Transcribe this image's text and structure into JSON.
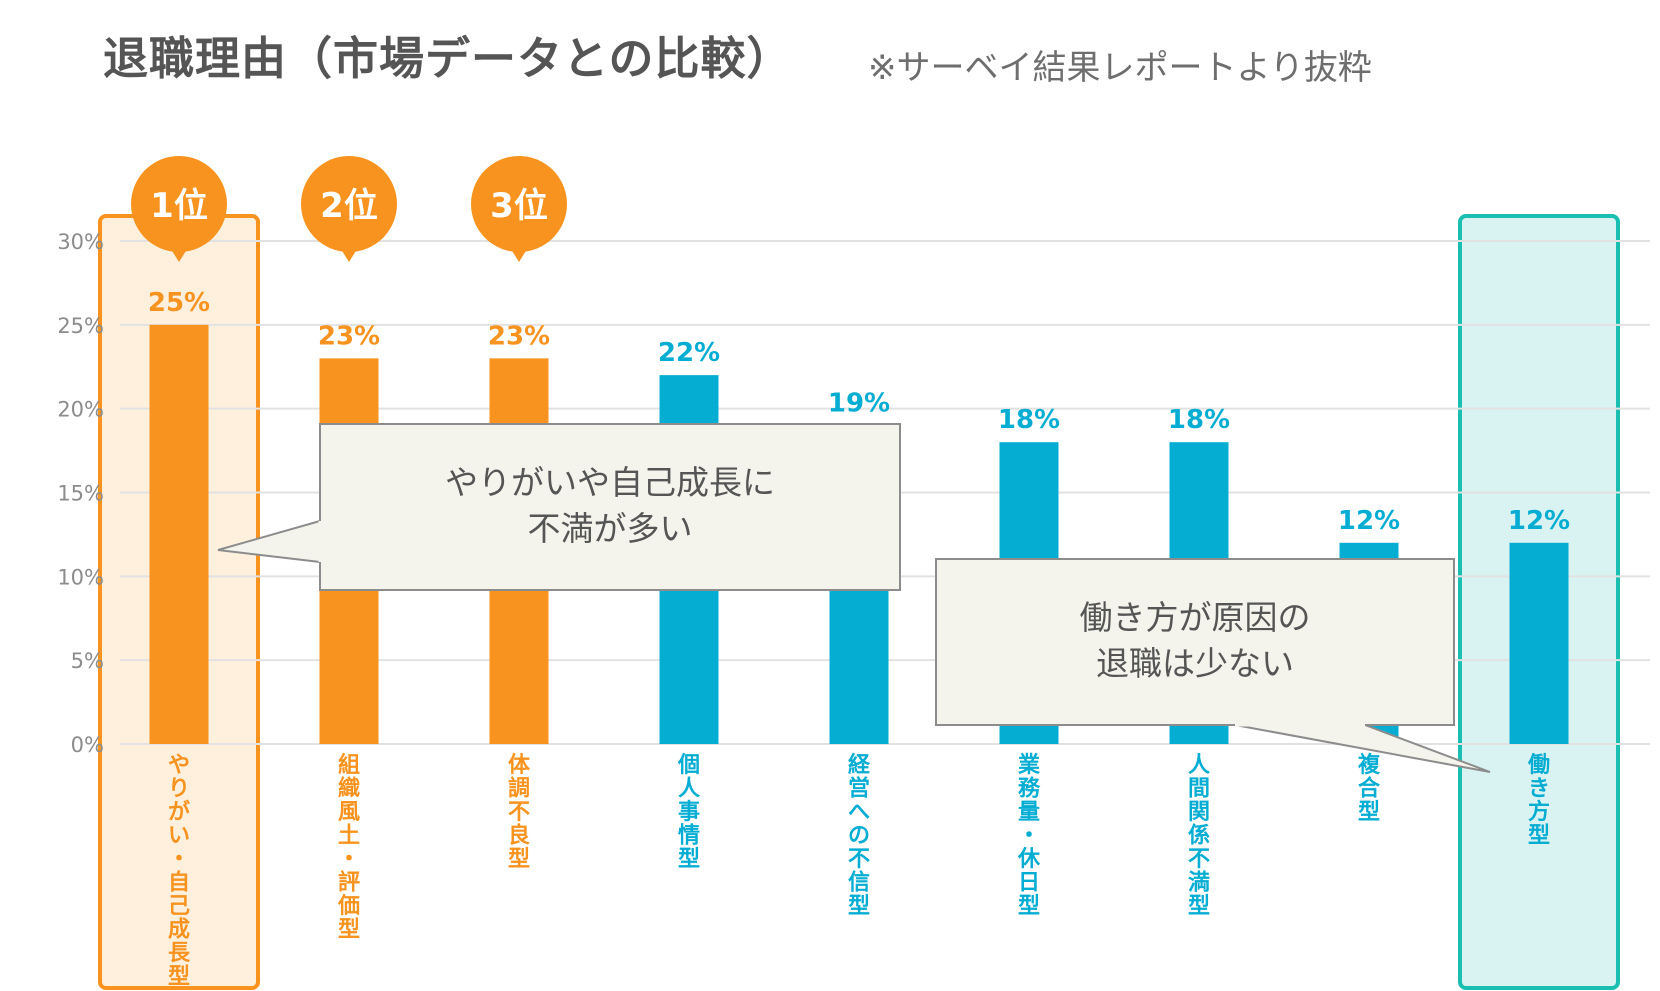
{
  "title": "退職理由（市場データとの比較）",
  "subtitle": "※サーベイ結果レポートより抜粋",
  "colors": {
    "orange": "#F7931E",
    "blue": "#06ADD3",
    "highlight_orange_fill": "#FEF0DD",
    "highlight_orange_border": "#F7931E",
    "highlight_teal_fill": "#D9F2F2",
    "highlight_teal_border": "#1ABFB2",
    "callout_fill": "#F4F4EC",
    "callout_border": "#8C8C8C",
    "grid": "#E2E2E2",
    "axis_text": "#8C8C8C"
  },
  "chart_data": {
    "type": "bar",
    "title": "退職理由（市場データとの比較）",
    "subtitle": "※サーベイ結果レポートより抜粋",
    "categories": [
      "やりがい・自己成長型",
      "組織風土・評価型",
      "体調不良型",
      "個人事情型",
      "経営への不信型",
      "業務量・休日型",
      "人間関係不満型",
      "複合型",
      "働き方型"
    ],
    "values": [
      25,
      23,
      23,
      22,
      19,
      18,
      18,
      12,
      12
    ],
    "value_labels": [
      "25%",
      "23%",
      "23%",
      "22%",
      "19%",
      "18%",
      "18%",
      "12%",
      "12%"
    ],
    "bar_colors": [
      "orange",
      "orange",
      "orange",
      "blue",
      "blue",
      "blue",
      "blue",
      "blue",
      "blue"
    ],
    "ylim": [
      0,
      30
    ],
    "yticks": [
      "0%",
      "5%",
      "10%",
      "15%",
      "20%",
      "25%",
      "30%"
    ],
    "grid": true,
    "rank_badges": [
      {
        "category_index": 0,
        "label": "1位"
      },
      {
        "category_index": 1,
        "label": "2位"
      },
      {
        "category_index": 2,
        "label": "3位"
      }
    ],
    "highlights": [
      {
        "category_index": 0,
        "style": "orange"
      },
      {
        "category_index": 8,
        "style": "teal"
      }
    ],
    "callouts": [
      {
        "lines": [
          "やりがいや自己成長に",
          "不満が多い"
        ],
        "points_to_category": 0
      },
      {
        "lines": [
          "働き方が原因の",
          "退職は少ない"
        ],
        "points_to_category": 8
      }
    ]
  }
}
